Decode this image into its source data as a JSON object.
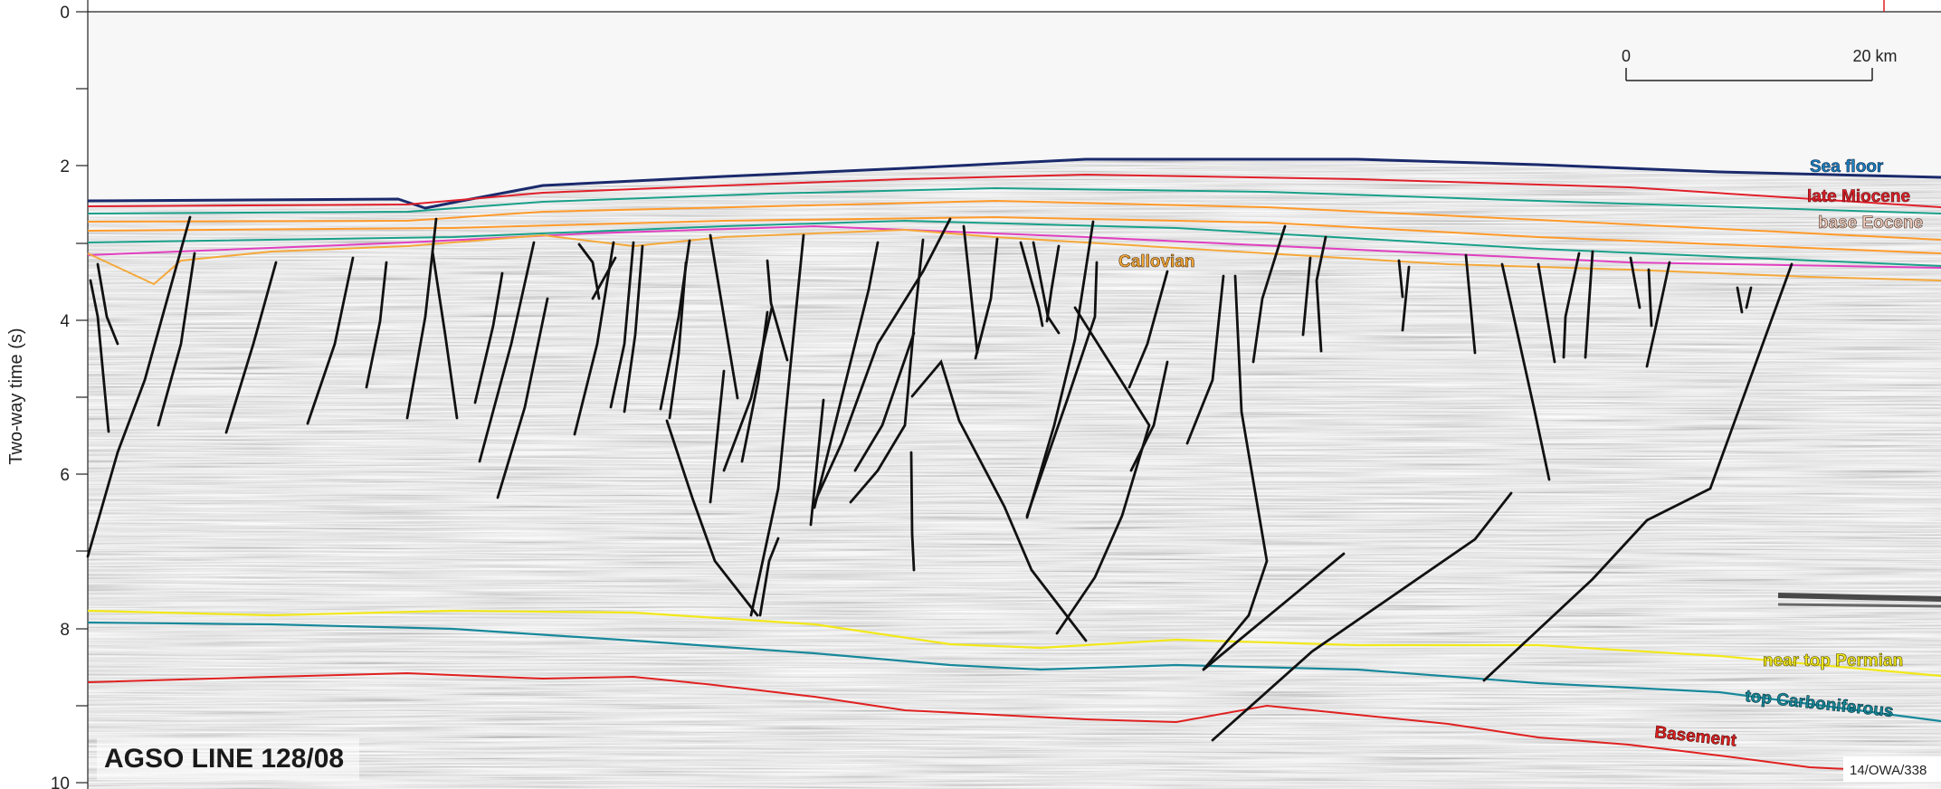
{
  "axis": {
    "y_label": "Two-way time (s)",
    "y_ticks": [
      "0",
      "2",
      "4",
      "6",
      "8",
      "10"
    ],
    "y_range": [
      0,
      10
    ]
  },
  "scale_bar": {
    "left_label": "0",
    "right_label": "20 km"
  },
  "horizon_labels": {
    "sea_floor": "Sea floor",
    "late_miocene": "late Miocene",
    "base_eocene": "base Eocene",
    "callovian": "Callovian",
    "near_top_permian": "near top Permian",
    "top_carboniferous": "top Carboniferous",
    "basement": "Basement"
  },
  "line_title": "AGSO LINE 128/08",
  "reference": "14/OWA/338",
  "colors": {
    "sea_floor": "#1a2a6c",
    "late_miocene": "#e0202a",
    "base_eocene": "#ff9a2a",
    "teal_horizon": "#1aa08a",
    "pink_horizon": "#e040c0",
    "callovian": "#f5a83a",
    "near_top_permian": "#f2e81a",
    "top_carboniferous": "#16889a",
    "basement": "#e02020",
    "faults": "#111111"
  }
}
